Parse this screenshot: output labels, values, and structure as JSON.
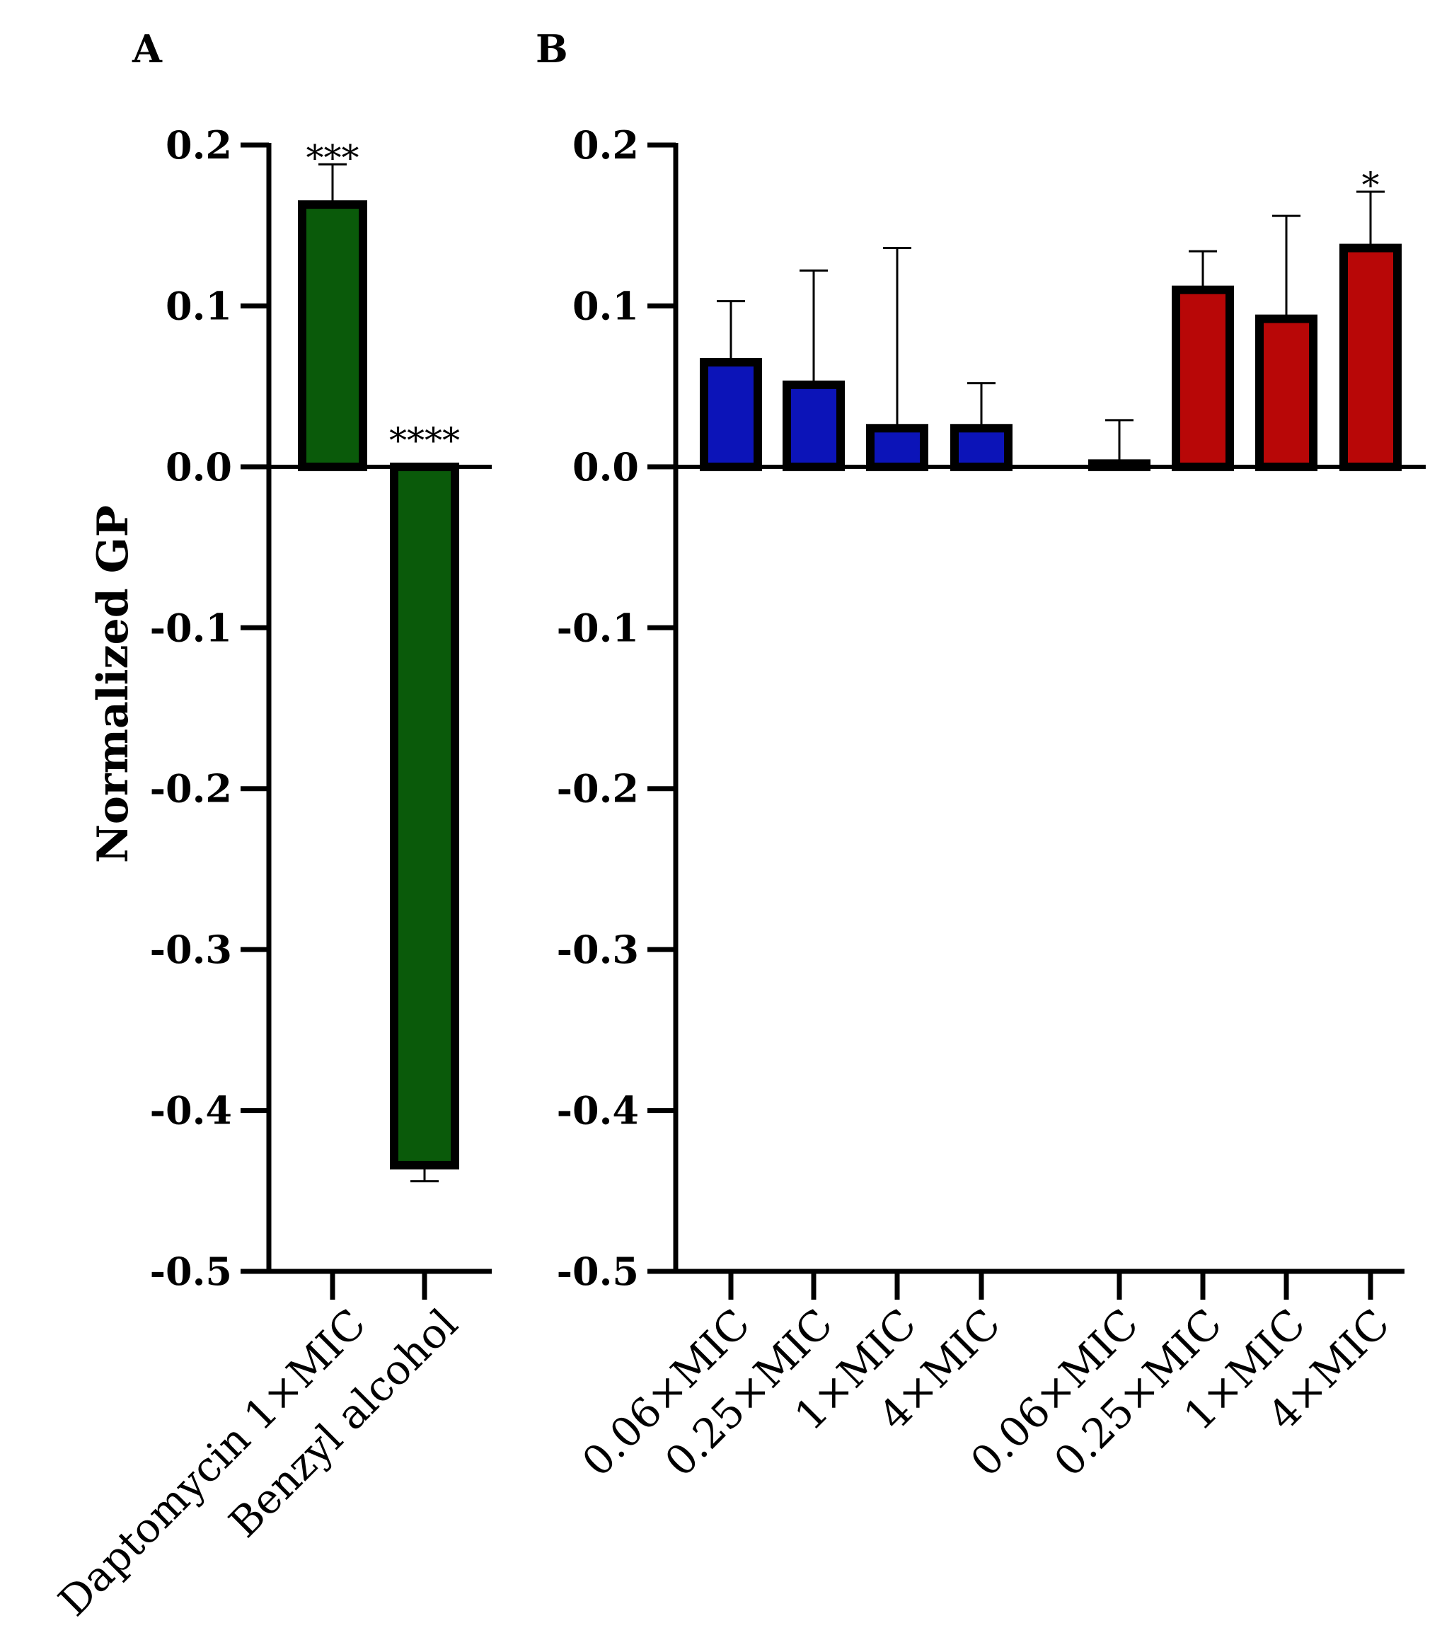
{
  "chart_data": [
    {
      "panel": "A",
      "type": "bar",
      "ylabel": "Normalized GP",
      "ylim": [
        -0.5,
        0.2
      ],
      "yticks": [
        "0.2",
        "0.1",
        "0.0",
        "-0.1",
        "-0.2",
        "-0.3",
        "-0.4",
        "-0.5"
      ],
      "ytick_values": [
        0.2,
        0.1,
        0.0,
        -0.1,
        -0.2,
        -0.3,
        -0.4,
        -0.5
      ],
      "categories": [
        "Daptomycin 1×MIC",
        "Benzyl alcohol"
      ],
      "values": [
        0.163,
        -0.434
      ],
      "errors": [
        0.025,
        0.01
      ],
      "significance": [
        "***",
        "****"
      ],
      "colors": [
        "#0a5a0a",
        "#0a5a0a"
      ],
      "grid": false
    },
    {
      "panel": "B",
      "type": "bar",
      "ylabel": "",
      "ylim": [
        -0.5,
        0.2
      ],
      "yticks": [
        "0.2",
        "0.1",
        "0.0",
        "-0.1",
        "-0.2",
        "-0.3",
        "-0.4",
        "-0.5"
      ],
      "ytick_values": [
        0.2,
        0.1,
        0.0,
        -0.1,
        -0.2,
        -0.3,
        -0.4,
        -0.5
      ],
      "categories": [
        "0.06×MIC",
        "0.25×MIC",
        "1×MIC",
        "4×MIC",
        "0.06×MIC",
        "0.25×MIC",
        "1×MIC",
        "4×MIC"
      ],
      "values": [
        0.065,
        0.051,
        0.024,
        0.024,
        0.002,
        0.11,
        0.092,
        0.136
      ],
      "errors": [
        0.038,
        0.071,
        0.112,
        0.028,
        0.027,
        0.024,
        0.064,
        0.035
      ],
      "significance": [
        "",
        "",
        "",
        "",
        "",
        "",
        "",
        "*"
      ],
      "colors": [
        "#0c14b8",
        "#0c14b8",
        "#0c14b8",
        "#0c14b8",
        "#b80707",
        "#b80707",
        "#b80707",
        "#b80707"
      ],
      "grid": false
    }
  ],
  "colors": {
    "green": "#0a5a0a",
    "blue": "#0c14b8",
    "red": "#b80707",
    "axis": "#000000"
  }
}
